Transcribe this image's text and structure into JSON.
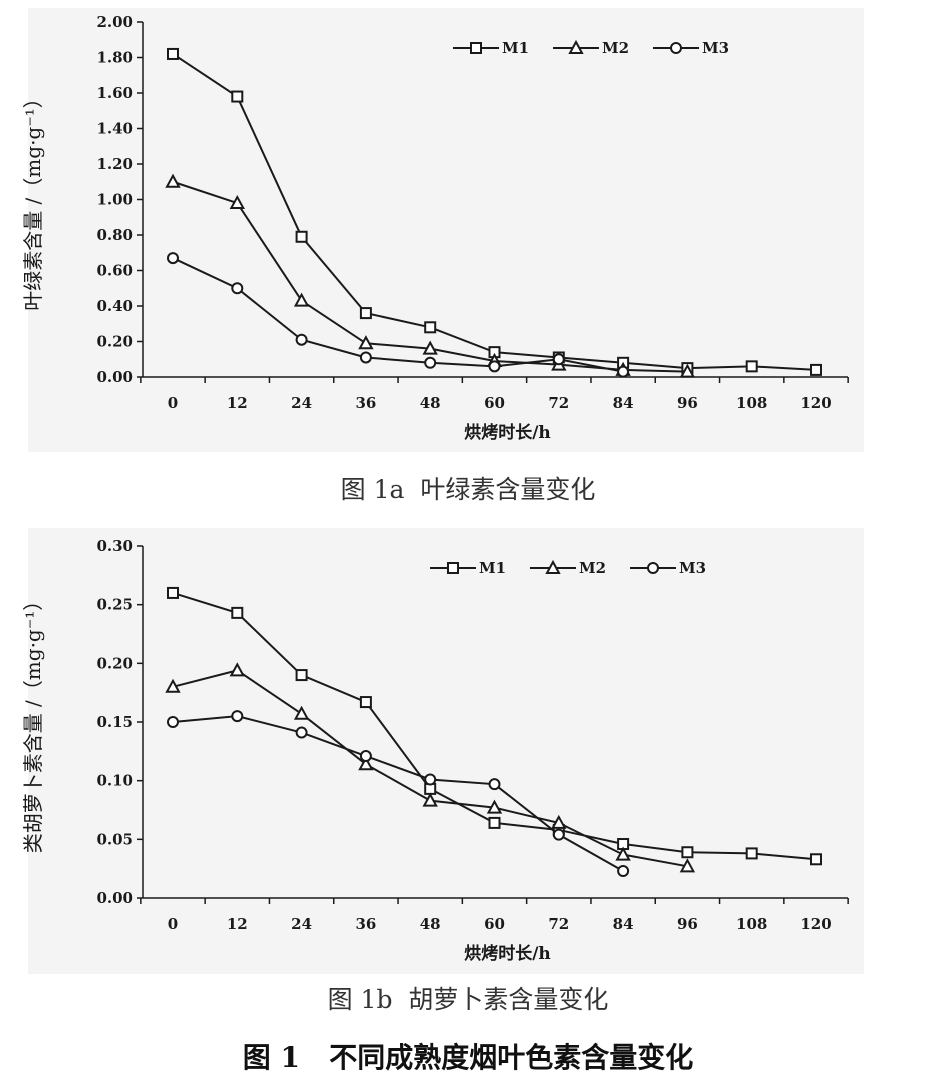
{
  "chart_data": [
    {
      "type": "line",
      "x": [
        0,
        12,
        24,
        36,
        48,
        60,
        72,
        84,
        96,
        108,
        120
      ],
      "xlabel": "烘烤时长/h",
      "ylabel": "叶绿素含量 /（mg·g⁻¹）",
      "ylim": [
        0,
        2.0
      ],
      "yticks": [
        "0.00",
        "0.20",
        "0.40",
        "0.60",
        "0.80",
        "1.00",
        "1.20",
        "1.40",
        "1.60",
        "1.80",
        "2.00"
      ],
      "xticks": [
        "0",
        "12",
        "24",
        "36",
        "48",
        "60",
        "72",
        "84",
        "96",
        "108",
        "120"
      ],
      "legend_position": "top-right",
      "grid": false,
      "series": [
        {
          "name": "M1",
          "marker": "square",
          "values": [
            1.82,
            1.58,
            0.79,
            0.36,
            0.28,
            0.14,
            0.11,
            0.08,
            0.05,
            0.06,
            0.04
          ]
        },
        {
          "name": "M2",
          "marker": "triangle",
          "values": [
            1.1,
            0.98,
            0.43,
            0.19,
            0.16,
            0.09,
            0.07,
            0.04,
            0.03,
            null,
            null
          ]
        },
        {
          "name": "M3",
          "marker": "circle",
          "values": [
            0.67,
            0.5,
            0.21,
            0.11,
            0.08,
            0.06,
            0.1,
            0.03,
            null,
            null,
            null
          ]
        }
      ]
    },
    {
      "type": "line",
      "x": [
        0,
        12,
        24,
        36,
        48,
        60,
        72,
        84,
        96,
        108,
        120
      ],
      "xlabel": "烘烤时长/h",
      "ylabel": "类胡萝卜素含量 /（mg·g⁻¹）",
      "ylim": [
        0,
        0.3
      ],
      "yticks": [
        "0.00",
        "0.05",
        "0.10",
        "0.15",
        "0.20",
        "0.25",
        "0.30"
      ],
      "xticks": [
        "0",
        "12",
        "24",
        "36",
        "48",
        "60",
        "72",
        "84",
        "96",
        "108",
        "120"
      ],
      "legend_position": "top-right",
      "grid": false,
      "series": [
        {
          "name": "M1",
          "marker": "square",
          "values": [
            0.26,
            0.243,
            0.19,
            0.167,
            0.093,
            0.064,
            0.058,
            0.046,
            0.039,
            0.038,
            0.033
          ]
        },
        {
          "name": "M2",
          "marker": "triangle",
          "values": [
            0.18,
            0.194,
            0.157,
            0.114,
            0.083,
            0.077,
            0.064,
            0.037,
            0.027,
            null,
            null
          ]
        },
        {
          "name": "M3",
          "marker": "circle",
          "values": [
            0.15,
            0.155,
            0.141,
            0.121,
            0.101,
            0.097,
            0.054,
            0.023,
            null,
            null,
            null
          ]
        }
      ]
    }
  ],
  "captions": {
    "panel_a": "图 1a  叶绿素含量变化",
    "panel_b": "图 1b  胡萝卜素含量变化",
    "figure": "图 1   不同成熟度烟叶色素含量变化"
  }
}
